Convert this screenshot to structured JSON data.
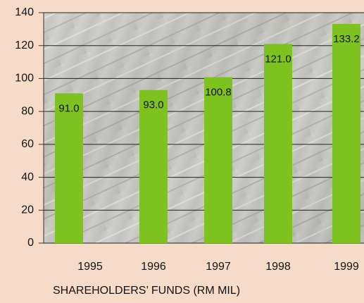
{
  "chart_data": {
    "type": "bar",
    "title": "SHAREHOLDERS’ FUNDS (RM MIL)",
    "categories": [
      "1995",
      "1996",
      "1997",
      "1998",
      "1999"
    ],
    "values": [
      91,
      93,
      100.8,
      121,
      133.2
    ],
    "value_labels": [
      "91.0",
      "93.0",
      "100.8",
      "121.0",
      "133.2"
    ],
    "color": "#7dc21e",
    "ylim": [
      0,
      140
    ],
    "yticks": [
      0,
      20,
      40,
      60,
      80,
      100,
      120,
      140
    ],
    "grid": true
  }
}
